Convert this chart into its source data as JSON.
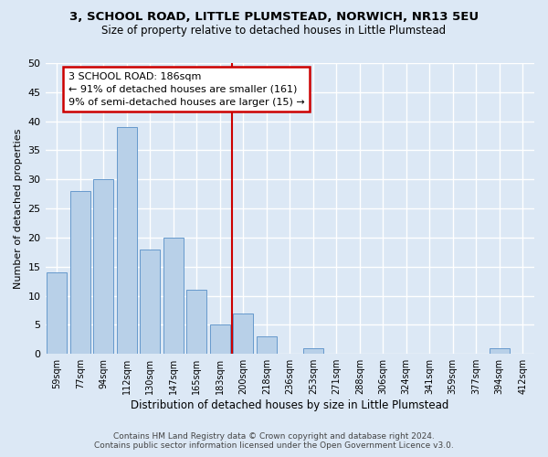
{
  "title": "3, SCHOOL ROAD, LITTLE PLUMSTEAD, NORWICH, NR13 5EU",
  "subtitle": "Size of property relative to detached houses in Little Plumstead",
  "xlabel": "Distribution of detached houses by size in Little Plumstead",
  "ylabel": "Number of detached properties",
  "bar_labels": [
    "59sqm",
    "77sqm",
    "94sqm",
    "112sqm",
    "130sqm",
    "147sqm",
    "165sqm",
    "183sqm",
    "200sqm",
    "218sqm",
    "236sqm",
    "253sqm",
    "271sqm",
    "288sqm",
    "306sqm",
    "324sqm",
    "341sqm",
    "359sqm",
    "377sqm",
    "394sqm",
    "412sqm"
  ],
  "bar_values": [
    14,
    28,
    30,
    39,
    18,
    20,
    11,
    5,
    7,
    3,
    0,
    1,
    0,
    0,
    0,
    0,
    0,
    0,
    0,
    1,
    0
  ],
  "bar_color": "#b8d0e8",
  "bar_edge_color": "#6699cc",
  "background_color": "#dce8f5",
  "grid_color": "#ffffff",
  "ylim": [
    0,
    50
  ],
  "yticks": [
    0,
    5,
    10,
    15,
    20,
    25,
    30,
    35,
    40,
    45,
    50
  ],
  "property_line_x": 7.5,
  "annotation_text": "3 SCHOOL ROAD: 186sqm\n← 91% of detached houses are smaller (161)\n9% of semi-detached houses are larger (15) →",
  "annotation_box_color": "#ffffff",
  "annotation_border_color": "#cc0000",
  "vline_color": "#cc0000",
  "footer_line1": "Contains HM Land Registry data © Crown copyright and database right 2024.",
  "footer_line2": "Contains public sector information licensed under the Open Government Licence v3.0."
}
